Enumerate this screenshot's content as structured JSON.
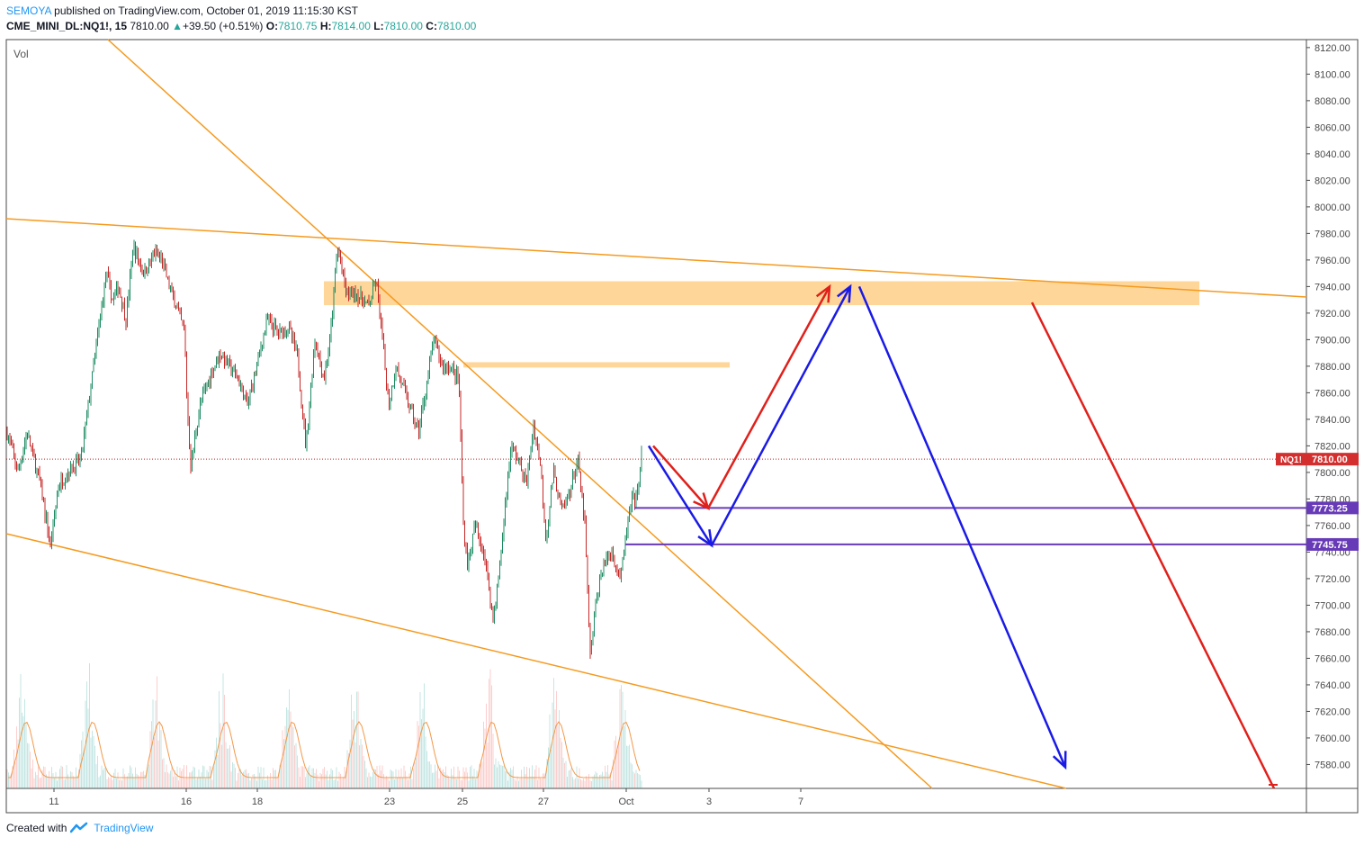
{
  "header": {
    "author": "SEMOYA",
    "published_text": "published on TradingView.com, October 01, 2019 11:15:30 KST",
    "symbol": "CME_MINI_DL:NQ1!, 15",
    "last": "7810.00",
    "change": "+39.50 (+0.51%)",
    "o_label": "O:",
    "o_value": "7810.75",
    "h_label": "H:",
    "h_value": "7814.00",
    "l_label": "L:",
    "l_value": "7810.00",
    "c_label": "C:",
    "c_value": "7810.00"
  },
  "volume_label": "Vol",
  "footer": {
    "created_with": "Created with",
    "brand": "TradingView"
  },
  "chart_data": {
    "type": "candlestick",
    "symbol": "NQ1!",
    "interval": "15",
    "y_axis": {
      "ylim": [
        7562,
        8126
      ],
      "ticks": [
        7580,
        7600,
        7620,
        7640,
        7660,
        7680,
        7700,
        7720,
        7740,
        7760,
        7780,
        7800,
        7820,
        7840,
        7860,
        7880,
        7900,
        7920,
        7940,
        7960,
        7980,
        8000,
        8020,
        8040,
        8060,
        8080,
        8100,
        8120
      ],
      "tick_labels": [
        "7580.00",
        "7600.00",
        "7620.00",
        "7640.00",
        "7660.00",
        "7680.00",
        "7700.00",
        "7720.00",
        "7740.00",
        "7760.00",
        "7780.00",
        "7800.00",
        "7820.00",
        "7840.00",
        "7860.00",
        "7880.00",
        "7900.00",
        "7920.00",
        "7940.00",
        "7960.00",
        "7980.00",
        "8000.00",
        "8020.00",
        "8040.00",
        "8060.00",
        "8080.00",
        "8100.00",
        "8120.00"
      ]
    },
    "x_axis": {
      "tick_labels": [
        "11",
        "16",
        "18",
        "23",
        "25",
        "27",
        "Oct",
        "3",
        "7"
      ]
    },
    "price_labels": [
      {
        "text": "NQ1!",
        "value": "7810.00",
        "price": 7810.0,
        "color": "#d32f2f"
      },
      {
        "text": "",
        "value": "7773.25",
        "price": 7773.25,
        "color": "#673ab7"
      },
      {
        "text": "",
        "value": "7745.75",
        "price": 7745.75,
        "color": "#673ab7"
      }
    ],
    "price_path": [
      [
        0,
        7880
      ],
      [
        8,
        7830
      ],
      [
        20,
        7800
      ],
      [
        30,
        7830
      ],
      [
        45,
        7790
      ],
      [
        56,
        7745
      ],
      [
        65,
        7790
      ],
      [
        75,
        7800
      ],
      [
        90,
        7810
      ],
      [
        100,
        7860
      ],
      [
        110,
        7910
      ],
      [
        118,
        7950
      ],
      [
        125,
        7930
      ],
      [
        132,
        7940
      ],
      [
        140,
        7915
      ],
      [
        148,
        7970
      ],
      [
        160,
        7950
      ],
      [
        172,
        7965
      ],
      [
        180,
        7960
      ],
      [
        188,
        7940
      ],
      [
        196,
        7925
      ],
      [
        205,
        7905
      ],
      [
        208,
        7850
      ],
      [
        212,
        7805
      ],
      [
        222,
        7850
      ],
      [
        232,
        7870
      ],
      [
        244,
        7890
      ],
      [
        255,
        7880
      ],
      [
        265,
        7870
      ],
      [
        275,
        7850
      ],
      [
        285,
        7880
      ],
      [
        297,
        7915
      ],
      [
        310,
        7905
      ],
      [
        320,
        7910
      ],
      [
        330,
        7890
      ],
      [
        340,
        7820
      ],
      [
        350,
        7900
      ],
      [
        360,
        7870
      ],
      [
        367,
        7900
      ],
      [
        375,
        7970
      ],
      [
        385,
        7935
      ],
      [
        395,
        7935
      ],
      [
        410,
        7925
      ],
      [
        418,
        7945
      ],
      [
        425,
        7900
      ],
      [
        432,
        7850
      ],
      [
        440,
        7880
      ],
      [
        450,
        7860
      ],
      [
        465,
        7830
      ],
      [
        475,
        7870
      ],
      [
        482,
        7900
      ],
      [
        492,
        7880
      ],
      [
        500,
        7880
      ],
      [
        510,
        7870
      ],
      [
        515,
        7760
      ],
      [
        520,
        7730
      ],
      [
        528,
        7760
      ],
      [
        538,
        7740
      ],
      [
        548,
        7690
      ],
      [
        555,
        7725
      ],
      [
        562,
        7780
      ],
      [
        568,
        7820
      ],
      [
        576,
        7810
      ],
      [
        585,
        7790
      ],
      [
        593,
        7835
      ],
      [
        600,
        7810
      ],
      [
        607,
        7750
      ],
      [
        615,
        7800
      ],
      [
        625,
        7770
      ],
      [
        635,
        7790
      ],
      [
        642,
        7810
      ],
      [
        650,
        7760
      ],
      [
        656,
        7660
      ],
      [
        662,
        7700
      ],
      [
        670,
        7730
      ],
      [
        680,
        7740
      ],
      [
        690,
        7720
      ],
      [
        697,
        7760
      ],
      [
        703,
        7780
      ],
      [
        708,
        7780
      ],
      [
        713,
        7815
      ]
    ],
    "drawings": {
      "horizontal_lines": [
        {
          "price": 7773.25,
          "color": "#673ab7"
        },
        {
          "price": 7745.75,
          "color": "#673ab7"
        }
      ],
      "zones": [
        {
          "price_top": 7944,
          "price_bottom": 7926,
          "color": "#ffcc80"
        },
        {
          "price_top": 7883,
          "price_bottom": 7879,
          "color": "#ffcc80"
        }
      ],
      "arrows": [
        {
          "color": "#e0201b",
          "path": [
            [
              7820,
              7773
            ],
            [
              7773,
              7940
            ]
          ]
        },
        {
          "color": "#1a1ae6",
          "path": [
            [
              7820,
              7745
            ],
            [
              7745,
              7940
            ],
            [
              7940,
              7578
            ]
          ]
        },
        {
          "color": "#e0201b",
          "path": [
            [
              7928,
              7562
            ]
          ]
        }
      ]
    },
    "last_price": 7810.0,
    "grid": false
  }
}
